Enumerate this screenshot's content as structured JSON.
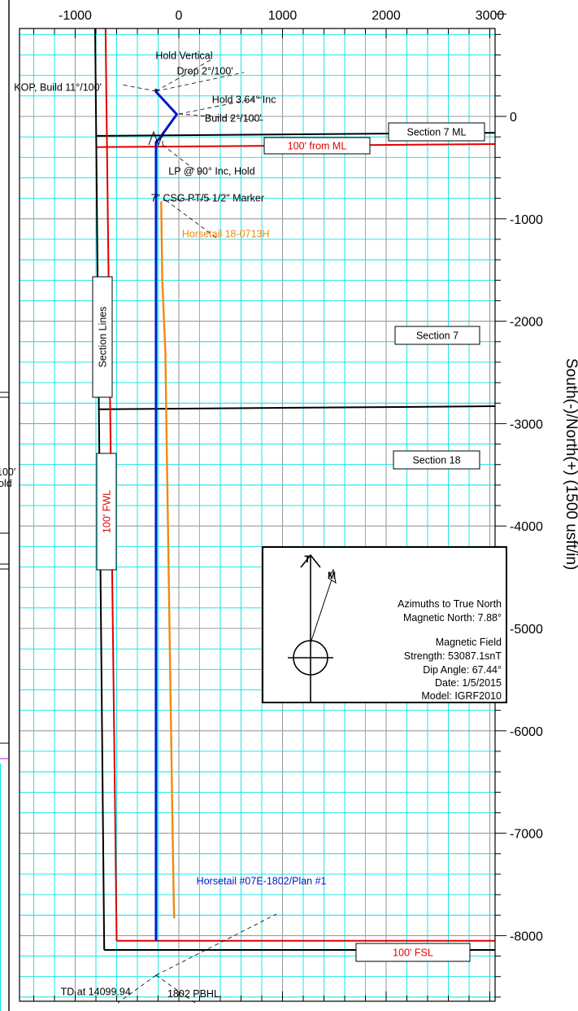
{
  "chart_data": {
    "type": "line",
    "title": "",
    "xlabel": "",
    "ylabel": "South(-)/North(+) (1500 usft/in)",
    "xlim": [
      -1500,
      3100
    ],
    "ylim": [
      -8700,
      1100
    ],
    "grid": true,
    "x_ticks": [
      "-1000",
      "0",
      "1000",
      "2000",
      "3000"
    ],
    "y_ticks": [
      "0",
      "-1000",
      "-2000",
      "-3000",
      "-4000",
      "-5000",
      "-6000",
      "-7000",
      "-8000"
    ],
    "colors": {
      "grid": "#00e5e5",
      "plan": "#0018c8",
      "offset": "#f08a10",
      "hardline": "#e00000",
      "section": "#000000"
    },
    "series": [
      {
        "name": "Horsetail #07E-1802/Plan #1",
        "color": "#0018c8",
        "points": [
          [
            -220,
            270
          ],
          [
            -220,
            240
          ],
          [
            -20,
            20
          ],
          [
            -190,
            -220
          ],
          [
            -220,
            -250
          ],
          [
            -220,
            -8050
          ]
        ]
      },
      {
        "name": "Horsetail 18-0713H",
        "color": "#f08a10",
        "points": [
          [
            -170,
            -830
          ],
          [
            -160,
            -1600
          ],
          [
            -130,
            -2300
          ],
          [
            -120,
            -3000
          ],
          [
            -105,
            -4000
          ],
          [
            -90,
            -5000
          ],
          [
            -75,
            -6000
          ],
          [
            -60,
            -7000
          ],
          [
            -50,
            -7600
          ],
          [
            -45,
            -7830
          ]
        ]
      }
    ],
    "lines": [
      {
        "name": "section-7-ml",
        "color": "#000000",
        "points": [
          [
            -800,
            -190
          ],
          [
            3100,
            -160
          ]
        ]
      },
      {
        "name": "hardline-ml",
        "color": "#e00000",
        "points": [
          [
            -790,
            -300
          ],
          [
            3100,
            -270
          ]
        ]
      },
      {
        "name": "section-7-18-line",
        "color": "#000000",
        "points": [
          [
            -780,
            -2860
          ],
          [
            3100,
            -2830
          ]
        ]
      },
      {
        "name": "west-section-line",
        "color": "#000000",
        "points": [
          [
            -810,
            1100
          ],
          [
            -720,
            -8140
          ]
        ]
      },
      {
        "name": "hardline-fwl",
        "color": "#e00000",
        "points": [
          [
            -710,
            1100
          ],
          [
            -600,
            -8050
          ]
        ]
      },
      {
        "name": "section-bottom-line",
        "color": "#000000",
        "points": [
          [
            -720,
            -8140
          ],
          [
            3100,
            -8140
          ]
        ]
      },
      {
        "name": "hardline-fsl",
        "color": "#e00000",
        "points": [
          [
            -600,
            -8050
          ],
          [
            3100,
            -8050
          ]
        ]
      }
    ],
    "annotations": [
      {
        "text": "Hold Vertical",
        "color": "#000000",
        "x": -225,
        "y": 560
      },
      {
        "text": "Drop 2°/100'",
        "color": "#000000",
        "x": -20,
        "y": 410
      },
      {
        "text": "KOP, Build 11°/100'",
        "color": "#000000",
        "x": -1590,
        "y": 250
      },
      {
        "text": "Hold 3.64° Inc",
        "color": "#000000",
        "x": 320,
        "y": 130
      },
      {
        "text": "Build 2°/100'",
        "color": "#000000",
        "x": 250,
        "y": -50
      },
      {
        "text": "LP @ 90° Inc, Hold",
        "color": "#000000",
        "x": -100,
        "y": -570
      },
      {
        "text": "7\" CSG PT/5 1/2\" Marker",
        "color": "#000000",
        "x": -270,
        "y": -830
      },
      {
        "text": "Horsetail 18-0713H",
        "color": "#f08a10",
        "x": 30,
        "y": -1180
      },
      {
        "text": "Horsetail #07E-1802/Plan #1",
        "color": "#0018c8",
        "x": 170,
        "y": -7500
      },
      {
        "text": "TD at 14099.94",
        "color": "#000000",
        "x": -1140,
        "y": -8580
      },
      {
        "text": "1802 PBHL",
        "color": "#000000",
        "x": -110,
        "y": -8600
      }
    ],
    "labels": [
      {
        "text": "Section 7 ML",
        "color": "#000000"
      },
      {
        "text": "100' from ML",
        "color": "#e00000"
      },
      {
        "text": "Section Lines",
        "color": "#000000"
      },
      {
        "text": "Section 7",
        "color": "#000000"
      },
      {
        "text": "Section 18",
        "color": "#000000"
      },
      {
        "text": "100' FWL",
        "color": "#e00000"
      },
      {
        "text": "100' FSL",
        "color": "#e00000"
      }
    ],
    "compass": {
      "true_label": "T",
      "magnetic_label": "M",
      "lines": [
        "Azimuths to True North",
        "Magnetic North: 7.88°",
        "",
        "Magnetic Field",
        "Strength: 53087.1snT",
        "Dip Angle: 67.44°",
        "Date: 1/5/2015",
        "Model: IGRF2010"
      ]
    },
    "left_fragment": [
      "100'",
      "old"
    ]
  }
}
